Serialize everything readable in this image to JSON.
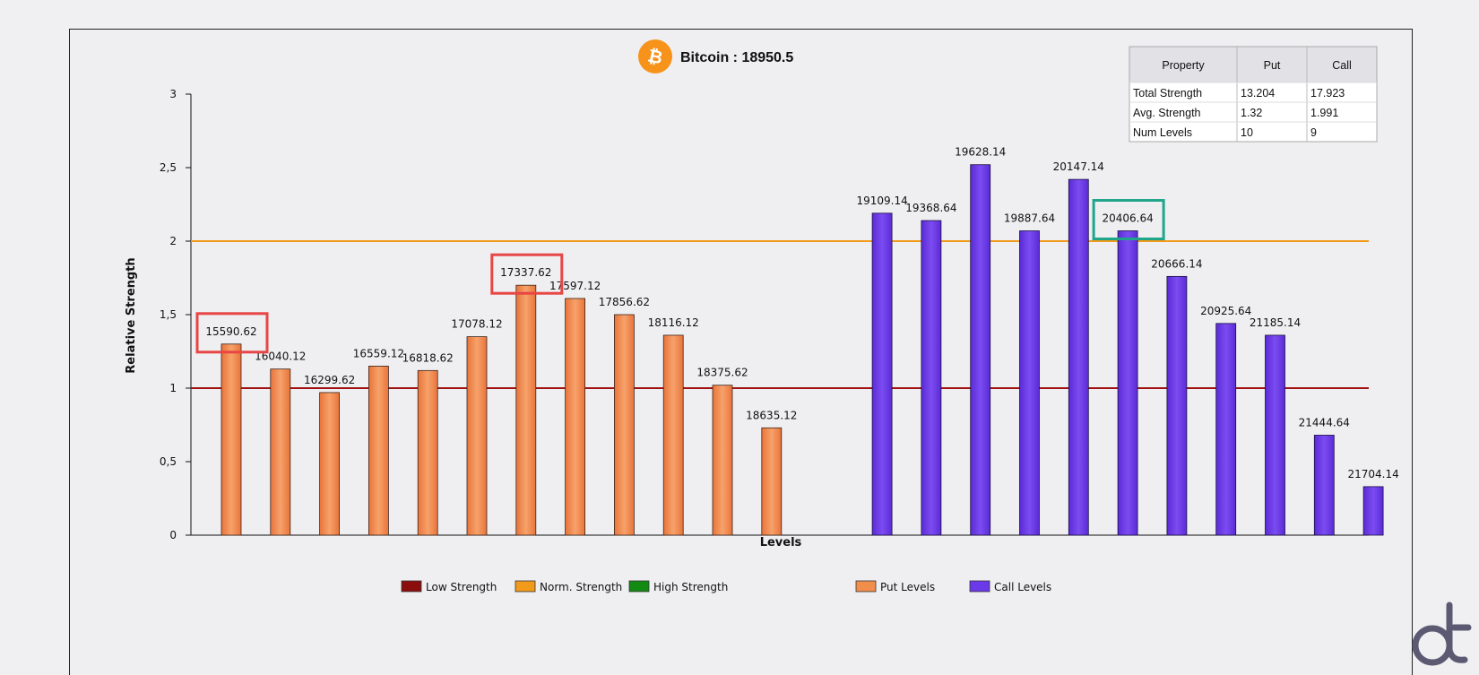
{
  "colors": {
    "put_bar": "#f28e4b",
    "put_bar_edge": "#e0702b",
    "call_bar": "#6b3ae8",
    "low_strength_line": "#a01010",
    "norm_strength_line": "#f29a1a",
    "high_strength": "#138a13",
    "highlight_red": "#e84545",
    "highlight_teal": "#1fa58a",
    "bitcoin_orange": "#f7931a",
    "logo_color": "#5c5a72"
  },
  "icons": {
    "title_icon": "bitcoin-icon",
    "corner_logo": "dl-logo"
  },
  "chart_data": {
    "type": "bar",
    "title": "Bitcoin : 18950.5",
    "xlabel": "Levels",
    "ylabel": "Relative Strength",
    "ylim": [
      0,
      3
    ],
    "yticks": [
      "0",
      "0,5",
      "1",
      "1,5",
      "2",
      "2,5",
      "3"
    ],
    "grid": false,
    "legend_position": "bottom",
    "reference_lines": [
      {
        "name": "Low Strength",
        "value": 1
      },
      {
        "name": "Norm. Strength",
        "value": 2
      }
    ],
    "series": [
      {
        "name": "Put Levels",
        "categories": [
          "15590.62",
          "16040.12",
          "16299.62",
          "16559.12",
          "16818.62",
          "17078.12",
          "17337.62",
          "17597.12",
          "17856.62",
          "18116.12",
          "18375.62",
          "18635.12"
        ],
        "values": [
          1.3,
          1.13,
          0.97,
          1.15,
          1.12,
          1.35,
          1.7,
          1.61,
          1.5,
          1.36,
          1.02,
          0.73
        ]
      },
      {
        "name": "Call Levels",
        "categories": [
          "19109.14",
          "19368.64",
          "19628.14",
          "19887.64",
          "20147.14",
          "20406.64",
          "20666.14",
          "20925.64",
          "21185.14",
          "21444.64",
          "21704.14"
        ],
        "values": [
          2.19,
          2.14,
          2.52,
          2.07,
          2.42,
          2.07,
          1.76,
          1.44,
          1.36,
          0.68,
          0.33
        ]
      }
    ],
    "highlighted_levels": [
      {
        "label": "15590.62",
        "color": "red"
      },
      {
        "label": "17337.62",
        "color": "red"
      },
      {
        "label": "20406.64",
        "color": "teal"
      }
    ]
  },
  "legend": {
    "items": [
      {
        "label": "Low Strength",
        "color": "#8b0d0d"
      },
      {
        "label": "Norm. Strength",
        "color": "#f29a1a"
      },
      {
        "label": "High Strength",
        "color": "#138a13"
      },
      {
        "label": "Put Levels",
        "color": "#f28e4b"
      },
      {
        "label": "Call Levels",
        "color": "#6b3ae8"
      }
    ]
  },
  "summary_table": {
    "headers": [
      "Property",
      "Put",
      "Call"
    ],
    "rows": [
      [
        "Total Strength",
        "13.204",
        "17.923"
      ],
      [
        "Avg. Strength",
        "1.32",
        "1.991"
      ],
      [
        "Num Levels",
        "10",
        "9"
      ]
    ]
  }
}
